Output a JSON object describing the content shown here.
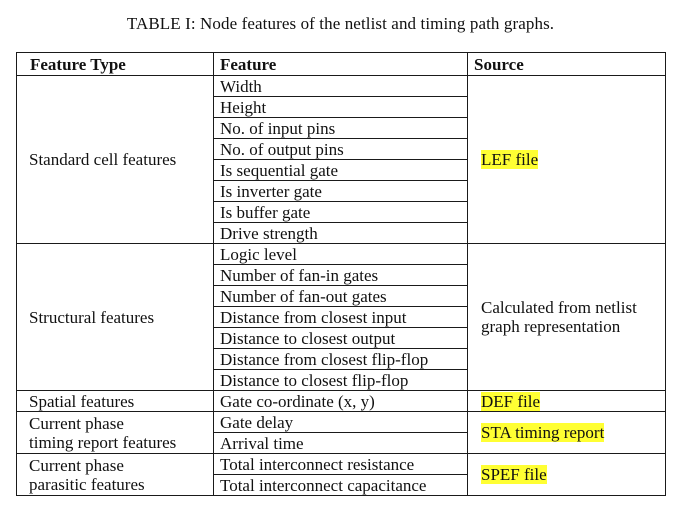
{
  "caption": "TABLE I: Node features of the netlist and timing path graphs.",
  "headers": {
    "type": "Feature Type",
    "feature": "Feature",
    "source": "Source"
  },
  "groups": [
    {
      "type": "Standard cell features",
      "features": [
        "Width",
        "Height",
        "No. of input pins",
        "No. of output pins",
        "Is sequential gate",
        "Is inverter gate",
        "Is buffer gate",
        "Drive strength"
      ],
      "source": "LEF file",
      "highlight": true
    },
    {
      "type": "Structural features",
      "features": [
        "Logic level",
        "Number of fan-in gates",
        "Number of fan-out gates",
        "Distance from closest input",
        "Distance to closest output",
        "Distance from closest flip-flop",
        "Distance to closest flip-flop"
      ],
      "source_lines": [
        "Calculated from netlist",
        "graph representation"
      ],
      "highlight": false
    },
    {
      "type": "Spatial features",
      "features": [
        "Gate co-ordinate (x, y)"
      ],
      "source": "DEF file",
      "highlight": true
    },
    {
      "type_lines": [
        "Current phase",
        "timing report features"
      ],
      "features": [
        "Gate delay",
        "Arrival time"
      ],
      "source": "STA timing report",
      "highlight": true
    },
    {
      "type_lines": [
        "Current phase",
        "parasitic features"
      ],
      "features": [
        "Total interconnect resistance",
        "Total interconnect capacitance"
      ],
      "source": "SPEF file",
      "highlight": true
    }
  ],
  "colors": {
    "highlight": "#ffff33",
    "border": "#1a1a1a",
    "text": "#111111"
  }
}
